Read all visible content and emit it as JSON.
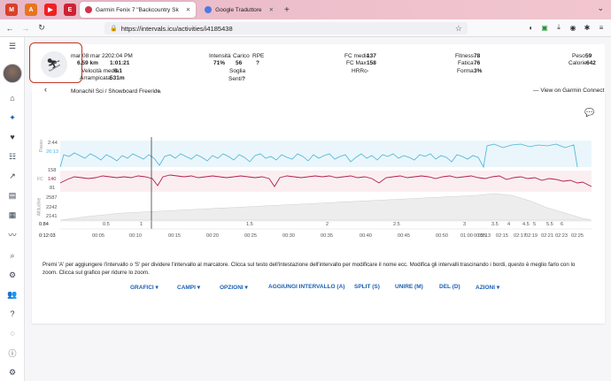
{
  "browser": {
    "tabs": [
      {
        "label": "",
        "active": false
      },
      {
        "label": "",
        "active": false
      },
      {
        "label": "",
        "active": false
      },
      {
        "label": "Garmin Fenix 7 \"Backcountry Sk",
        "active": true
      },
      {
        "label": "Google Traduttore",
        "active": false
      }
    ],
    "new_tab": "+",
    "url": "https://intervals.icu/activities/i4185438",
    "url_host": "intervals.icu"
  },
  "activity": {
    "date": "mar 08 mar 22",
    "time": "02:04 PM",
    "distance": "6.59 km",
    "duration": "1:01:21",
    "avg_speed_label": "Velocità media",
    "avg_speed": "6.1",
    "climb_label": "Arrampicata",
    "climb": "531m",
    "intensity_label": "Intensità",
    "intensity": "71%",
    "load_label": "Carico",
    "load": "56",
    "rpe_label": "RPE",
    "rpe": "?",
    "threshold_label": "Soglia",
    "feel_label": "Senti",
    "feel": "?",
    "hr_avg_label": "FC media",
    "hr_avg": "137",
    "hr_max_label": "FC Max",
    "hr_max": "158",
    "hrrc_label": "HRRc",
    "hrrc": "-",
    "fitness_label": "Fitness",
    "fitness": "78",
    "fatigue_label": "Fatica",
    "fatigue": "76",
    "form_label": "Forma",
    "form": "3%",
    "weight_label": "Peso",
    "weight": "59",
    "calories_label": "Calorie",
    "calories": "642",
    "title": "Monachil Sci / Showboard Freeride",
    "garmin_link": "View on Garmin Connect"
  },
  "chart_data": {
    "type": "line",
    "panels": [
      {
        "name": "Passo",
        "ticks": [
          "2:44",
          "26:13"
        ]
      },
      {
        "name": "FC",
        "ticks": [
          "158",
          "140",
          "81"
        ]
      },
      {
        "name": "Altitudine",
        "ticks": [
          "2587",
          "2242",
          "2141"
        ]
      }
    ],
    "x_time_ticks": [
      "0:12:03",
      "00:05",
      "00:10",
      "00:15",
      "00:20",
      "00:25",
      "00:30",
      "00:35",
      "00:40",
      "00:45",
      "00:50",
      "00:55",
      "01:00",
      "02:13",
      "02:15",
      "02:17",
      "02:19",
      "02:21",
      "02:23",
      "02:25"
    ],
    "x_km_ticks": [
      "0.84",
      "0.5",
      "1",
      "1.5",
      "2",
      "2.5",
      "3",
      "3.5",
      "4",
      "4.5",
      "5",
      "5.5",
      "6"
    ]
  },
  "help_text": "Premi 'A' per aggiungere l'intervallo o 'S' per dividere l'intervallo al marcatore. Clicca sul testo dell'intestazione dell'intervallo per modificare il nome ecc. Modifica gli intervalli trascinando i bordi, questo è meglio farlo con lo zoom. Clicca sul grafico per ridurre lo zoom.",
  "toolbar": {
    "charts": "GRAFICI",
    "fields": "CAMPI",
    "options": "OPZIONI",
    "add_interval": "AGGIUNGI INTERVALLO (A)",
    "split": "SPLIT (S)",
    "join": "UNIRE (M)",
    "del": "DEL (D)",
    "actions": "AZIONI"
  },
  "colors": {
    "accent": "#1a5fb4",
    "hr": "#b0204a",
    "pace": "#4ab3d6",
    "highlight": "#c0392b"
  }
}
